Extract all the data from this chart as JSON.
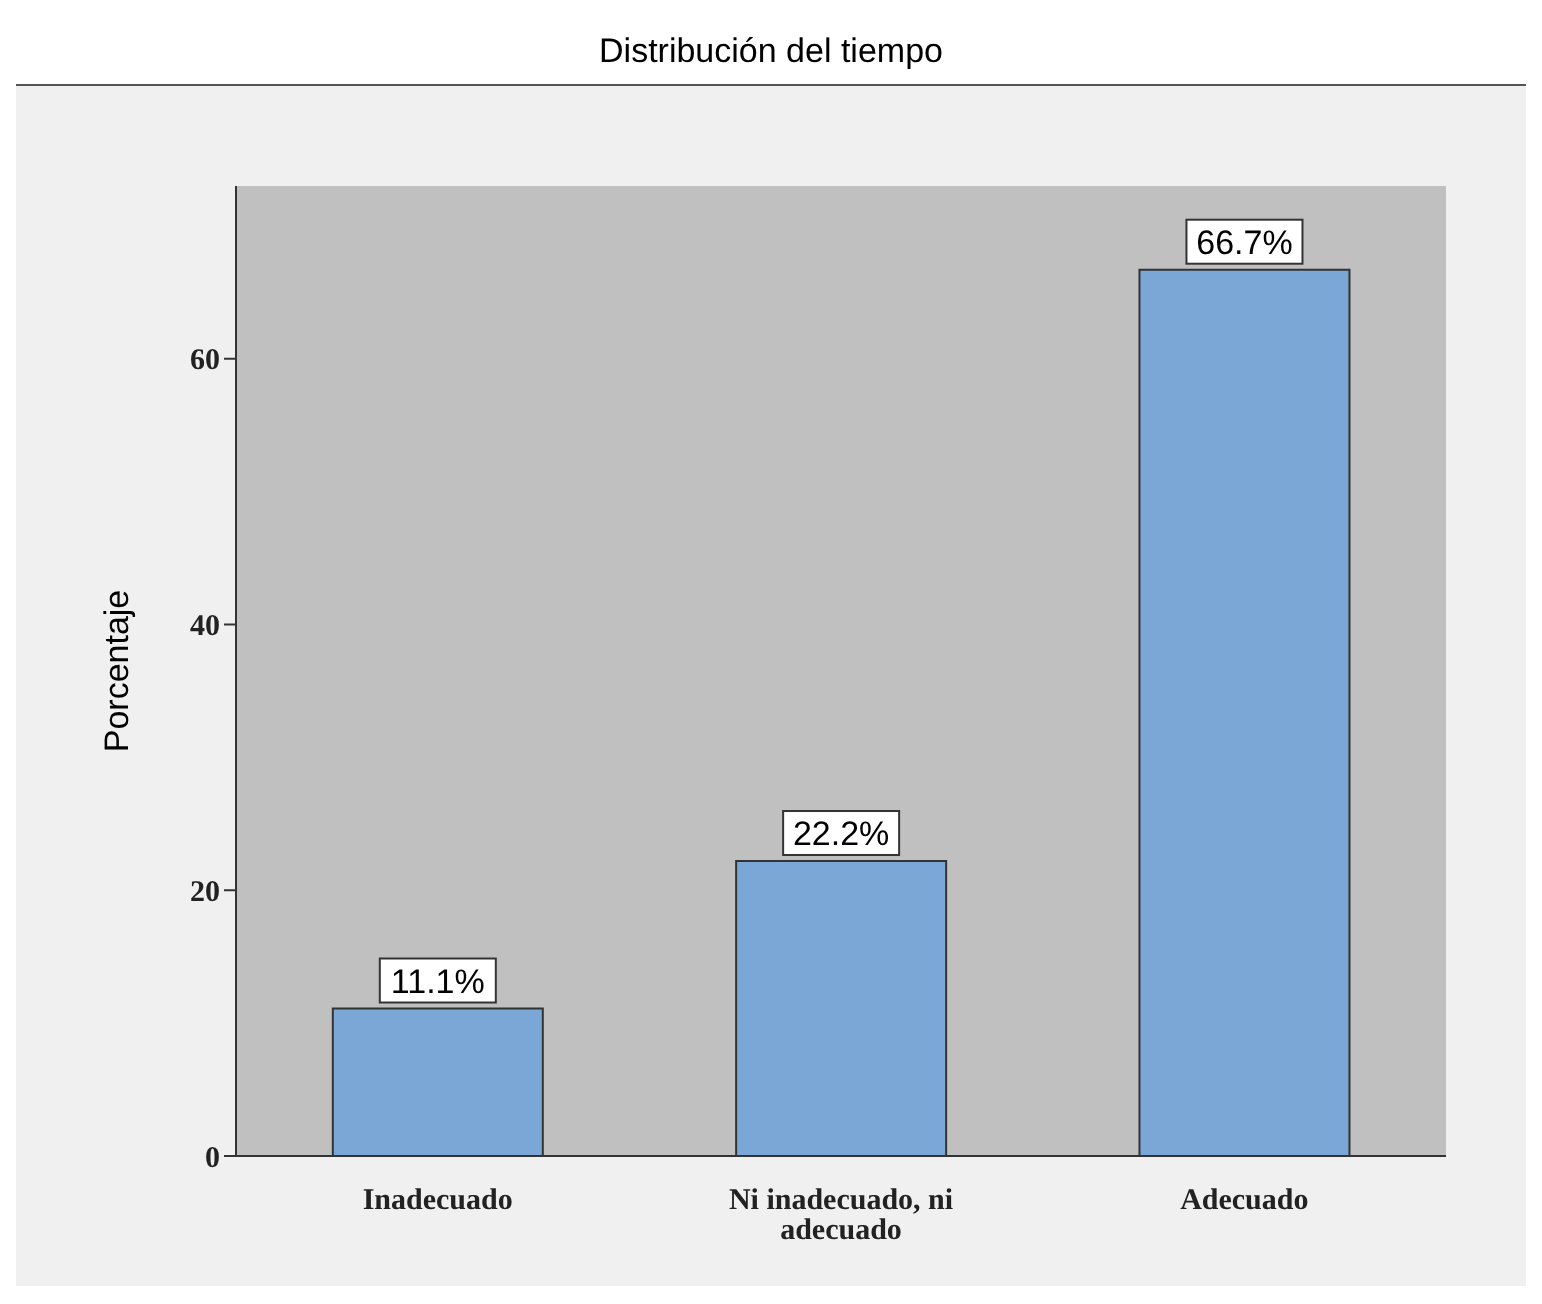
{
  "chart_data": {
    "type": "bar",
    "title": "Distribución del tiempo",
    "ylabel": "Porcentaje",
    "categories": [
      "Inadecuado",
      "Ni inadecuado, ni adecuado",
      "Adecuado"
    ],
    "values": [
      11.1,
      22.2,
      66.7
    ],
    "value_labels": [
      "11.1%",
      "22.2%",
      "66.7%"
    ],
    "color": "#7ba7d6",
    "ylim": [
      0,
      73
    ],
    "yticks": [
      0,
      20,
      40,
      60
    ],
    "grid": false,
    "legend": false
  }
}
